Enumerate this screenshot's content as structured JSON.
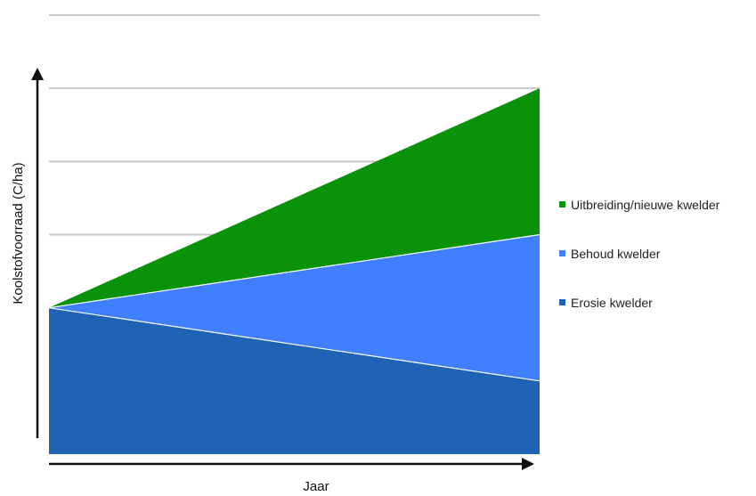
{
  "chart_data": {
    "type": "area",
    "title": "",
    "xlabel": "Jaar",
    "ylabel": "Koolstofvoorraad (C/ha)",
    "x": [
      0,
      1
    ],
    "ylim": [
      0,
      6
    ],
    "grid": true,
    "legend_position": "right",
    "series": [
      {
        "name": "Erosie kwelder",
        "color": "#1f63b4",
        "y_top_start": 2,
        "y_top_end": 1
      },
      {
        "name": "Behoud kwelder",
        "color": "#4080ff",
        "y_top_start": 2,
        "y_top_end": 3
      },
      {
        "name": "Uitbreiding/nieuwe kwelder",
        "color": "#0a930a",
        "y_top_start": 2,
        "y_top_end": 5
      }
    ],
    "gridlines": [
      3,
      4,
      5,
      6
    ],
    "axis_color": "#111111",
    "grid_color": "#c8c8c8"
  }
}
